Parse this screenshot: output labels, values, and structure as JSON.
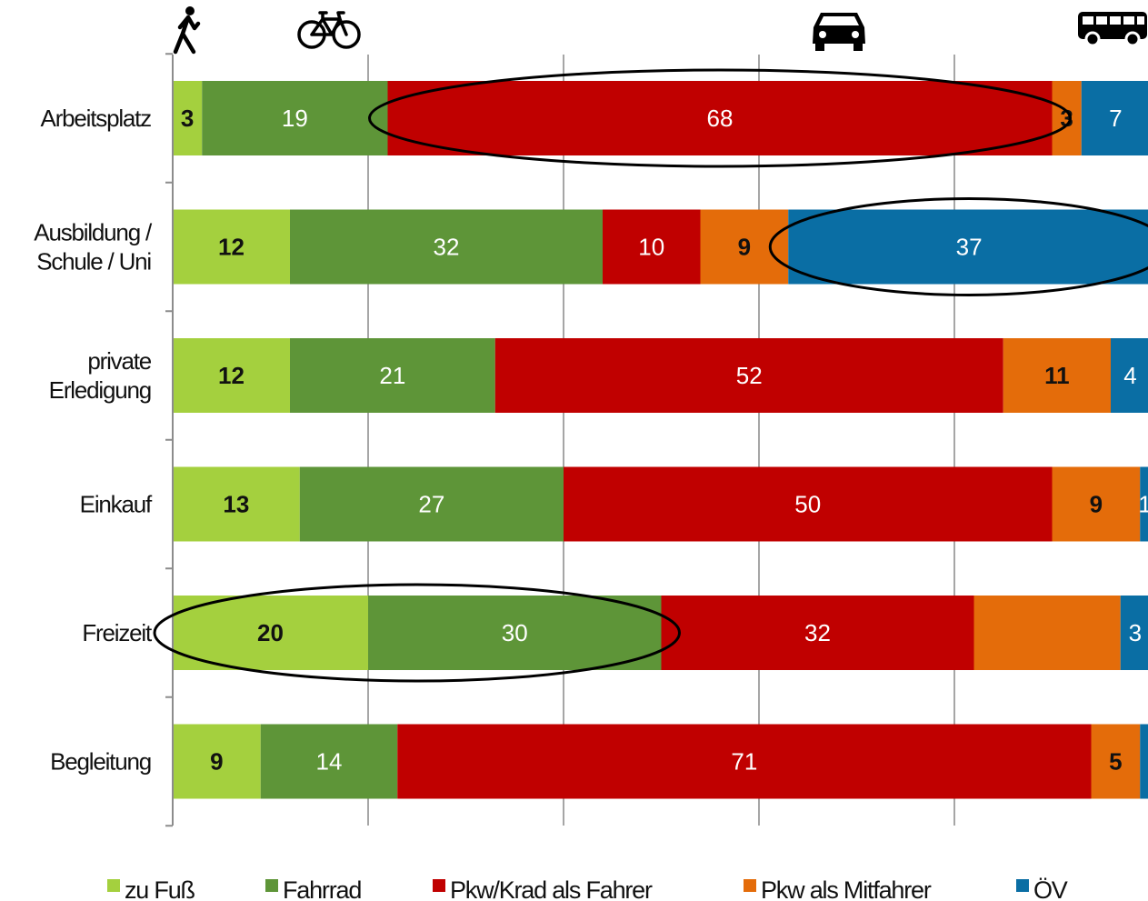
{
  "chart_data": {
    "type": "bar",
    "orientation": "horizontal-stacked",
    "unit": "percent",
    "categories": [
      "Arbeitsplatz",
      "Ausbildung / Schule / Uni",
      "private Erledigung",
      "Einkauf",
      "Freizeit",
      "Begleitung"
    ],
    "category_lines": [
      [
        "Arbeitsplatz"
      ],
      [
        "Ausbildung /",
        "Schule / Uni"
      ],
      [
        "private",
        "Erledigung"
      ],
      [
        "Einkauf"
      ],
      [
        "Freizeit"
      ],
      [
        "Begleitung"
      ]
    ],
    "series": [
      {
        "name": "zu Fuß",
        "color": "#a4d03e",
        "label_color": "#111111",
        "values": [
          3,
          12,
          12,
          13,
          20,
          9
        ]
      },
      {
        "name": "Fahrrad",
        "color": "#5e9538",
        "label_color": "#ffffff",
        "values": [
          19,
          32,
          21,
          27,
          30,
          14
        ]
      },
      {
        "name": "Pkw/Krad als Fahrer",
        "color": "#c00000",
        "label_color": "#ffffff",
        "values": [
          68,
          10,
          52,
          50,
          32,
          71
        ]
      },
      {
        "name": "Pkw als Mitfahrer",
        "color": "#e46c0a",
        "label_color": "#111111",
        "values": [
          3,
          9,
          11,
          9,
          15,
          5
        ]
      },
      {
        "name": "ÖV",
        "color": "#0a6ea4",
        "label_color": "#ffffff",
        "values": [
          7,
          37,
          4,
          1,
          3,
          1
        ]
      }
    ],
    "data_labels_shown": [
      [
        true,
        true,
        true,
        true,
        true,
        true
      ],
      [
        true,
        true,
        true,
        true,
        true,
        true
      ],
      [
        true,
        true,
        true,
        true,
        true,
        true
      ],
      [
        true,
        true,
        true,
        true,
        false,
        true
      ],
      [
        true,
        true,
        true,
        true,
        true,
        false
      ]
    ],
    "xlim": [
      0,
      100
    ],
    "grid": true,
    "legend": "bottom",
    "icons": [
      "pedestrian-icon",
      "bicycle-icon",
      "car-icon",
      "bus-icon"
    ],
    "highlights": [
      {
        "category": "Arbeitsplatz",
        "series": [
          "Pkw/Krad als Fahrer"
        ]
      },
      {
        "category": "Ausbildung / Schule / Uni",
        "series": [
          "ÖV"
        ]
      },
      {
        "category": "Freizeit",
        "series": [
          "zu Fuß",
          "Fahrrad"
        ]
      }
    ]
  }
}
